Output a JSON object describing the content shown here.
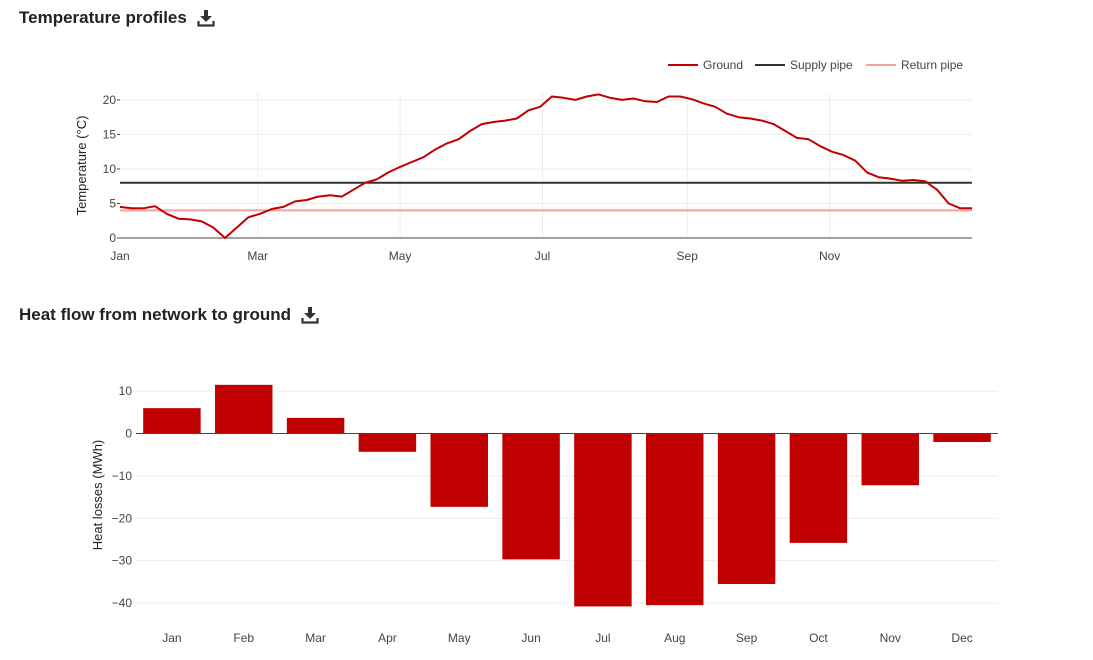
{
  "section1": {
    "title": "Temperature profiles",
    "download_icon": "download-icon"
  },
  "section2": {
    "title": "Heat flow from network to ground",
    "download_icon": "download-icon"
  },
  "chart_data": [
    {
      "type": "line",
      "title": "Temperature profiles",
      "ylabel": "Temperature (°C)",
      "xlabel": "",
      "x_ticks": [
        "Jan",
        "Mar",
        "May",
        "Jul",
        "Sep",
        "Nov"
      ],
      "y_ticks": [
        0,
        5,
        10,
        15,
        20
      ],
      "ylim": [
        0,
        21
      ],
      "legend_position": "top-right",
      "grid": true,
      "series": [
        {
          "name": "Ground",
          "color": "#c00000",
          "x_days": [
            0,
            5,
            10,
            15,
            20,
            25,
            30,
            35,
            40,
            45,
            50,
            55,
            60,
            65,
            70,
            75,
            80,
            85,
            90,
            95,
            100,
            105,
            110,
            115,
            120,
            125,
            130,
            135,
            140,
            145,
            150,
            155,
            160,
            165,
            170,
            175,
            180,
            185,
            190,
            195,
            200,
            205,
            210,
            215,
            220,
            225,
            230,
            235,
            240,
            245,
            250,
            255,
            260,
            265,
            270,
            275,
            280,
            285,
            290,
            295,
            300,
            305,
            310,
            315,
            320,
            325,
            330,
            335,
            340,
            345,
            350,
            355,
            360,
            365
          ],
          "values": [
            4.5,
            4.3,
            4.3,
            4.6,
            3.5,
            2.8,
            2.7,
            2.4,
            1.5,
            0,
            1.5,
            3.0,
            3.5,
            4.2,
            4.5,
            5.3,
            5.5,
            6.0,
            6.2,
            6.0,
            7.0,
            8.0,
            8.5,
            9.5,
            10.3,
            11.0,
            11.7,
            12.8,
            13.7,
            14.3,
            15.5,
            16.5,
            16.8,
            17.0,
            17.3,
            18.5,
            19.0,
            20.5,
            20.3,
            20.0,
            20.5,
            20.8,
            20.3,
            20.0,
            20.2,
            19.8,
            19.7,
            20.5,
            20.5,
            20.1,
            19.5,
            19.0,
            18.0,
            17.5,
            17.3,
            17.0,
            16.5,
            15.5,
            14.5,
            14.3,
            13.3,
            12.5,
            12.0,
            11.2,
            9.5,
            8.8,
            8.6,
            8.3,
            8.4,
            8.2,
            7.0,
            5.0,
            4.3,
            4.3
          ]
        },
        {
          "name": "Supply pipe",
          "color": "#333333",
          "x_days": [
            0,
            365
          ],
          "values": [
            8,
            8
          ]
        },
        {
          "name": "Return pipe",
          "color": "#f2a0a0",
          "x_days": [
            0,
            365
          ],
          "values": [
            4,
            4
          ]
        }
      ]
    },
    {
      "type": "bar",
      "title": "Heat flow from network to ground",
      "ylabel": "Heat losses (MWh)",
      "xlabel": "",
      "categories": [
        "Jan",
        "Feb",
        "Mar",
        "Apr",
        "May",
        "Jun",
        "Jul",
        "Aug",
        "Sep",
        "Oct",
        "Nov",
        "Dec"
      ],
      "values": [
        6,
        11.5,
        3.7,
        -4.3,
        -17.3,
        -29.7,
        -40.8,
        -40.5,
        -35.5,
        -25.8,
        -12.2,
        -2
      ],
      "y_ticks": [
        10,
        0,
        -10,
        -20,
        -30,
        -40
      ],
      "ylim": [
        -44,
        15
      ],
      "bar_color": "#c00000",
      "grid": true
    }
  ]
}
